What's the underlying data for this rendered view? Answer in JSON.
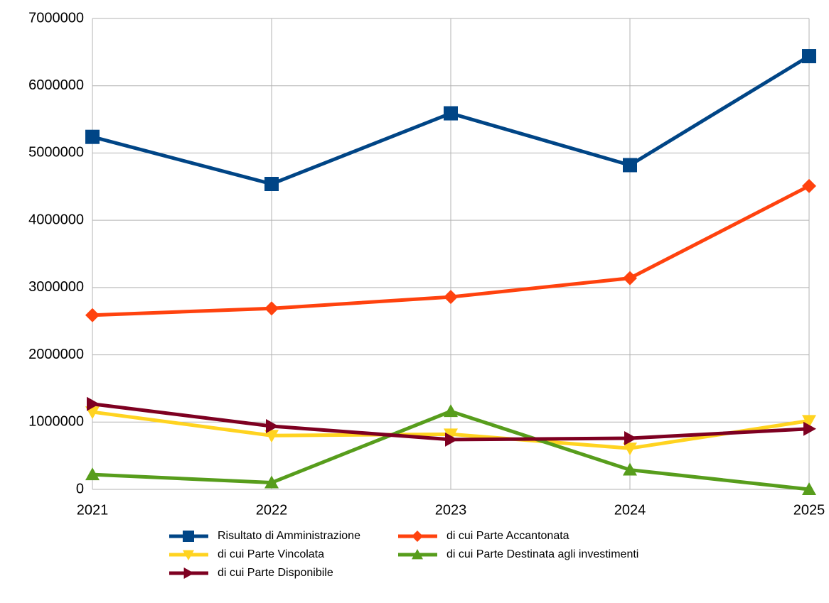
{
  "chart_data": {
    "type": "line",
    "x": [
      2021,
      2022,
      2023,
      2024,
      2025
    ],
    "xlim": [
      2021,
      2025
    ],
    "xticks": [
      2021,
      2022,
      2023,
      2024,
      2025
    ],
    "ylim": [
      0,
      7000000
    ],
    "yticks": [
      0,
      1000000,
      2000000,
      3000000,
      4000000,
      5000000,
      6000000,
      7000000
    ],
    "grid": true,
    "legend": "bottom",
    "series": [
      {
        "name": "Risultato di Amministrazione",
        "color": "#004586",
        "marker": "square",
        "values": [
          5240000,
          4540000,
          5590000,
          4820000,
          6440000
        ]
      },
      {
        "name": "di cui Parte Accantonata",
        "color": "#ff420e",
        "marker": "diamond",
        "values": [
          2590000,
          2690000,
          2860000,
          3140000,
          4510000
        ]
      },
      {
        "name": "di cui Parte Vincolata",
        "color": "#ffd320",
        "marker": "triangle-down",
        "values": [
          1150000,
          800000,
          820000,
          610000,
          1020000
        ]
      },
      {
        "name": "di cui Parte Destinata agli investimenti",
        "color": "#579d1c",
        "marker": "triangle-up",
        "values": [
          220000,
          100000,
          1160000,
          290000,
          0
        ]
      },
      {
        "name": "di cui Parte Disponibile",
        "color": "#7e0021",
        "marker": "triangle-right",
        "values": [
          1270000,
          940000,
          740000,
          760000,
          900000
        ]
      }
    ]
  }
}
